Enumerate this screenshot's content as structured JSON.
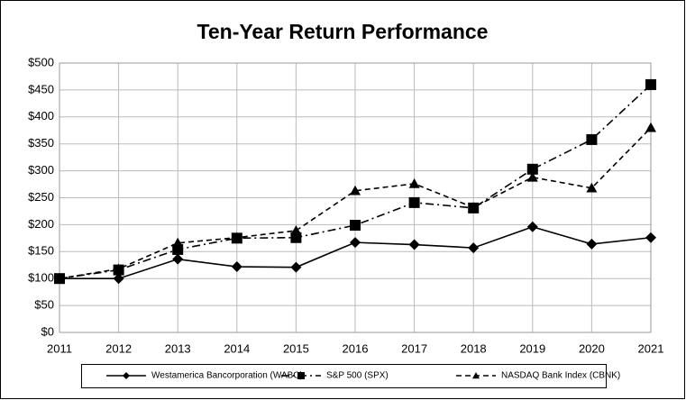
{
  "chart_data": {
    "type": "line",
    "title": "Ten-Year Return Performance",
    "x": [
      2011,
      2012,
      2013,
      2014,
      2015,
      2016,
      2017,
      2018,
      2019,
      2020,
      2021
    ],
    "xlim": [
      2011,
      2021
    ],
    "xticks": [
      2011,
      2012,
      2013,
      2014,
      2015,
      2016,
      2017,
      2018,
      2019,
      2020,
      2021
    ],
    "ylim": [
      0,
      500
    ],
    "yticks": [
      {
        "value": 0,
        "label": "$0"
      },
      {
        "value": 50,
        "label": "$50"
      },
      {
        "value": 100,
        "label": "$100"
      },
      {
        "value": 150,
        "label": "$150"
      },
      {
        "value": 200,
        "label": "$200"
      },
      {
        "value": 250,
        "label": "$250"
      },
      {
        "value": 300,
        "label": "$300"
      },
      {
        "value": 350,
        "label": "$350"
      },
      {
        "value": 400,
        "label": "$400"
      },
      {
        "value": 450,
        "label": "$450"
      },
      {
        "value": 500,
        "label": "$500"
      }
    ],
    "grid": true,
    "legend": "bottom",
    "series": [
      {
        "name": "Westamerica Bancorporation (WABC)",
        "color": "#000000",
        "marker": "diamond",
        "linestyle": "solid",
        "values": [
          100,
          100,
          136,
          122,
          121,
          167,
          163,
          157,
          196,
          164,
          176
        ]
      },
      {
        "name": "S&P 500 (SPX)",
        "color": "#000000",
        "marker": "square",
        "linestyle": "dashdot",
        "values": [
          100,
          116,
          154,
          175,
          176,
          199,
          241,
          231,
          303,
          358,
          460
        ]
      },
      {
        "name": "NASDAQ Bank Index (CBNK)",
        "color": "#000000",
        "marker": "triangle",
        "linestyle": "dashed",
        "values": [
          100,
          118,
          166,
          176,
          189,
          263,
          276,
          232,
          288,
          268,
          380
        ]
      }
    ]
  }
}
